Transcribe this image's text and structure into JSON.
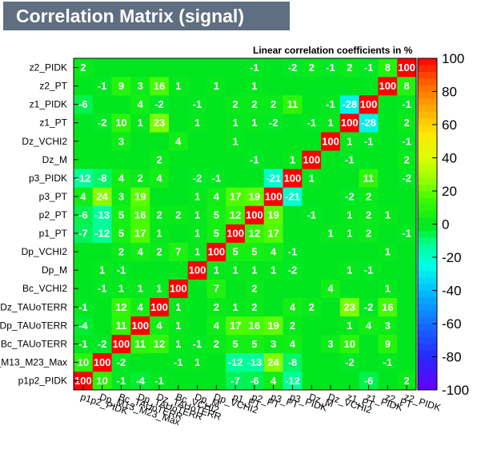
{
  "chart_data": {
    "type": "heatmap",
    "title": "Correlation Matrix (signal)",
    "subtitle": "Linear correlation coefficients in %",
    "variables": [
      "p1p2_PIDK",
      "Dp_M13_M23_Max",
      "Bc_TAUoTERR",
      "Dp_TAUoTERR",
      "Dz_TAUoTERR",
      "Bc_VCHI2",
      "Dp_M",
      "Dp_VCHI2",
      "p1_PT",
      "p2_PT",
      "p3_PT",
      "p3_PIDK",
      "Dz_M",
      "Dz_VCHI2",
      "z1_PT",
      "z1_PIDK",
      "z2_PT",
      "z2_PIDK"
    ],
    "x_tick_labels": [
      "p1p2_PIDK",
      "Dp_M13_M23_Max",
      "Bc_TAUoTERR",
      "Dp_TAUoTERR",
      "Dz_TAUoTERR",
      "Bc_VCHI2",
      "Dp_M",
      "Dp_VCHI2",
      "p1_PT",
      "p2_PT",
      "p3_PT",
      "p3_PIDK",
      "Dz_M",
      "Dz_VCHI2",
      "z1_PT",
      "z1_PIDK",
      "z2_PT",
      "z2_PIDK"
    ],
    "y_tick_labels": [
      "p1p2_PIDK",
      "Dp_M13_M23_Max",
      "Bc_TAUoTERR",
      "Dp_TAUoTERR",
      "Dz_TAUoTERR",
      "Bc_VCHI2",
      "Dp_M",
      "Dp_VCHI2",
      "p1_PT",
      "p2_PT",
      "p3_PT",
      "p3_PIDK",
      "Dz_M",
      "Dz_VCHI2",
      "z1_PT",
      "z1_PIDK",
      "z2_PT",
      "z2_PIDK"
    ],
    "zlim": [
      -100,
      100
    ],
    "z_ticks": [
      -100,
      -80,
      -60,
      -40,
      -20,
      0,
      20,
      40,
      60,
      80,
      100
    ],
    "colorbar_position": "right",
    "values": [
      [
        100,
        10,
        -1,
        -4,
        -1,
        0,
        0,
        0,
        -7,
        -6,
        4,
        -12,
        0,
        0,
        0,
        -6,
        0,
        2
      ],
      [
        10,
        100,
        -2,
        0,
        0,
        -1,
        1,
        0,
        -12,
        -13,
        24,
        -8,
        0,
        0,
        -2,
        0,
        -1,
        0
      ],
      [
        -1,
        -2,
        100,
        11,
        12,
        1,
        -1,
        2,
        5,
        5,
        3,
        4,
        0,
        3,
        10,
        0,
        9,
        0
      ],
      [
        -4,
        0,
        11,
        100,
        4,
        1,
        0,
        4,
        17,
        16,
        19,
        2,
        0,
        0,
        1,
        4,
        3,
        0
      ],
      [
        -1,
        0,
        12,
        4,
        100,
        1,
        0,
        2,
        1,
        2,
        0,
        4,
        2,
        0,
        23,
        -2,
        16,
        0
      ],
      [
        0,
        -1,
        1,
        1,
        1,
        100,
        0,
        7,
        0,
        2,
        0,
        0,
        0,
        4,
        0,
        0,
        1,
        0
      ],
      [
        0,
        1,
        -1,
        0,
        0,
        0,
        100,
        1,
        1,
        1,
        1,
        -2,
        0,
        0,
        1,
        -1,
        0,
        0
      ],
      [
        0,
        0,
        2,
        4,
        2,
        7,
        1,
        100,
        5,
        5,
        4,
        -1,
        0,
        0,
        0,
        0,
        1,
        0
      ],
      [
        -7,
        -12,
        5,
        17,
        1,
        0,
        1,
        5,
        100,
        12,
        17,
        0,
        0,
        1,
        1,
        2,
        0,
        -1
      ],
      [
        -6,
        -13,
        5,
        16,
        2,
        2,
        1,
        5,
        12,
        100,
        19,
        0,
        -1,
        0,
        1,
        2,
        1,
        0
      ],
      [
        4,
        24,
        3,
        19,
        0,
        0,
        1,
        4,
        17,
        19,
        100,
        -21,
        0,
        0,
        -2,
        2,
        0,
        0
      ],
      [
        -12,
        -8,
        4,
        2,
        4,
        0,
        -2,
        -1,
        0,
        0,
        -21,
        100,
        1,
        0,
        0,
        11,
        0,
        -2
      ],
      [
        0,
        0,
        0,
        0,
        2,
        0,
        0,
        0,
        0,
        -1,
        0,
        1,
        100,
        0,
        -1,
        0,
        0,
        2
      ],
      [
        0,
        0,
        3,
        0,
        0,
        4,
        0,
        0,
        1,
        0,
        0,
        0,
        0,
        100,
        1,
        -1,
        0,
        -1
      ],
      [
        0,
        -2,
        10,
        1,
        23,
        0,
        1,
        0,
        1,
        1,
        -2,
        0,
        -1,
        1,
        100,
        -28,
        0,
        2
      ],
      [
        -6,
        0,
        0,
        4,
        -2,
        0,
        -1,
        0,
        2,
        2,
        2,
        11,
        0,
        -1,
        -28,
        100,
        0,
        -1
      ],
      [
        0,
        -1,
        9,
        3,
        16,
        1,
        0,
        1,
        0,
        1,
        0,
        0,
        0,
        0,
        0,
        0,
        100,
        8
      ],
      [
        2,
        0,
        0,
        0,
        0,
        0,
        0,
        0,
        0,
        -1,
        0,
        -2,
        2,
        -1,
        2,
        -1,
        8,
        100
      ]
    ]
  }
}
